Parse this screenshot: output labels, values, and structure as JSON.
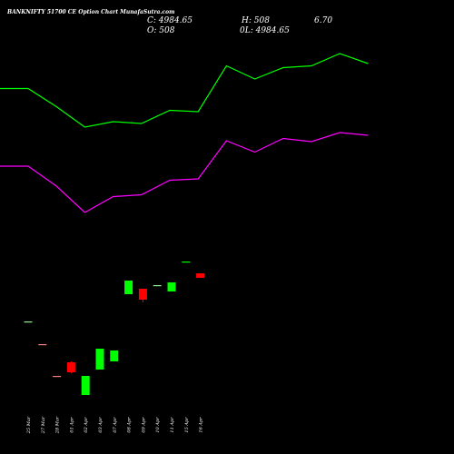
{
  "header": {
    "title": "BANKNIFTY 51700  CE Option  Chart MunafaSutra.com",
    "close": "C: 4984.65",
    "high": "H: 508",
    "change": "6.70",
    "open": "O: 508",
    "low": "L: 4984.65",
    "low_prefix": "0"
  },
  "chart_data": {
    "type": "candlestick",
    "title": "BANKNIFTY 51700  CE Option  Chart MunafaSutra.com",
    "categories": [
      "25 Mar",
      "27 Mar",
      "28 Mar",
      "01 Apr",
      "02 Apr",
      "03 Apr",
      "07 Apr",
      "08 Apr",
      "09 Apr",
      "10 Apr",
      "11 Apr",
      "15 Apr",
      "16 Apr"
    ],
    "price_range": [
      0,
      240
    ],
    "candles": [
      {
        "date": "25 Mar",
        "open": 146,
        "close": 146,
        "high": 146,
        "low": 146,
        "color": "#90ee90"
      },
      {
        "date": "27 Mar",
        "open": 121,
        "close": 121,
        "high": 121,
        "low": 121,
        "color": "#f08080"
      },
      {
        "date": "28 Mar",
        "open": 86,
        "close": 86,
        "high": 86,
        "low": 86,
        "color": "#f08080"
      },
      {
        "date": "01 Apr",
        "open": 101,
        "close": 90,
        "high": 102,
        "low": 89,
        "color": "#ff0000"
      },
      {
        "date": "02 Apr",
        "open": 65,
        "close": 86,
        "high": 86,
        "low": 65,
        "color": "#00ff00"
      },
      {
        "date": "03 Apr",
        "open": 93,
        "close": 116,
        "high": 116,
        "low": 93,
        "color": "#00ff00"
      },
      {
        "date": "07 Apr",
        "open": 102,
        "close": 114,
        "high": 114,
        "low": 102,
        "color": "#00ff00"
      },
      {
        "date": "08 Apr",
        "open": 176,
        "close": 191,
        "high": 191,
        "low": 176,
        "color": "#00ff00"
      },
      {
        "date": "09 Apr",
        "open": 182,
        "close": 170,
        "high": 182,
        "low": 167,
        "color": "#ff0000"
      },
      {
        "date": "10 Apr",
        "open": 186,
        "close": 186,
        "high": 186,
        "low": 186,
        "color": "#90ee90"
      },
      {
        "date": "11 Apr",
        "open": 179,
        "close": 189,
        "high": 189,
        "low": 179,
        "color": "#00ff00"
      },
      {
        "date": "15 Apr",
        "open": 212,
        "close": 212,
        "high": 212,
        "low": 212,
        "color": "#00ff00"
      },
      {
        "date": "16 Apr",
        "open": 199,
        "close": 194,
        "high": 199,
        "low": 194,
        "color": "#ff0000"
      }
    ],
    "overlay_lines": [
      {
        "color": "#00ff00",
        "values": [
          0.805,
          0.805,
          0.765,
          0.72,
          0.732,
          0.728,
          0.757,
          0.754,
          0.855,
          0.826,
          0.851,
          0.855,
          0.882,
          0.86
        ]
      },
      {
        "color": "#ff00ff",
        "values": [
          0.634,
          0.634,
          0.59,
          0.532,
          0.567,
          0.571,
          0.603,
          0.606,
          0.69,
          0.665,
          0.695,
          0.688,
          0.708,
          0.702
        ]
      }
    ],
    "grid": false,
    "legend": "none"
  }
}
